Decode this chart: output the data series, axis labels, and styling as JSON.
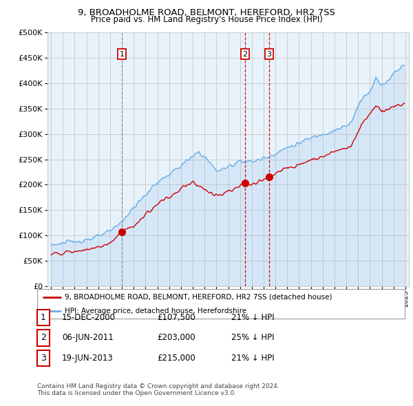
{
  "title": "9, BROADHOLME ROAD, BELMONT, HEREFORD, HR2 7SS",
  "subtitle": "Price paid vs. HM Land Registry's House Price Index (HPI)",
  "legend_line1": "9, BROADHOLME ROAD, BELMONT, HEREFORD, HR2 7SS (detached house)",
  "legend_line2": "HPI: Average price, detached house, Herefordshire",
  "footer1": "Contains HM Land Registry data © Crown copyright and database right 2024.",
  "footer2": "This data is licensed under the Open Government Licence v3.0.",
  "table": [
    {
      "num": "1",
      "date": "15-DEC-2000",
      "price": "£107,500",
      "pct": "21% ↓ HPI"
    },
    {
      "num": "2",
      "date": "06-JUN-2011",
      "price": "£203,000",
      "pct": "25% ↓ HPI"
    },
    {
      "num": "3",
      "date": "19-JUN-2013",
      "price": "£215,000",
      "pct": "21% ↓ HPI"
    }
  ],
  "sale_dates_num": [
    2001.0,
    2011.43,
    2013.46
  ],
  "sale_prices": [
    107500,
    203000,
    215000
  ],
  "sale_labels": [
    "1",
    "2",
    "3"
  ],
  "sale_vline_styles": [
    "dashed_gray",
    "dashed_red",
    "dashed_red"
  ],
  "ylim": [
    0,
    500000
  ],
  "xlim_start": 1994.7,
  "xlim_end": 2025.3,
  "hpi_color": "#6aaee8",
  "hpi_fill_color": "#daeaf7",
  "sale_color": "#cc0000",
  "vline_color_gray": "#888888",
  "vline_color_red": "#cc0000",
  "grid_color": "#cccccc",
  "bg_color": "#ffffff",
  "chart_bg_color": "#e8f2fa"
}
